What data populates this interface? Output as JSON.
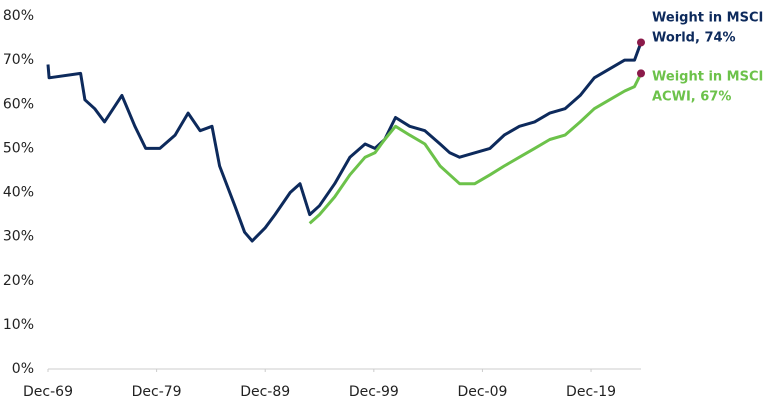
{
  "chart_data": {
    "type": "line",
    "x": [
      1969,
      1969.1,
      1972,
      1972.4,
      1973.3,
      1974.2,
      1975.8,
      1977,
      1978,
      1979.3,
      1980.7,
      1981.9,
      1983,
      1984.1,
      1984.8,
      1986.2,
      1987.1,
      1987.8,
      1989,
      1989.9,
      1991.3,
      1992.2,
      1993.1,
      1994,
      1995.4,
      1996.8,
      1998.2,
      1999.1,
      2000,
      2001,
      2002.3,
      2003.7,
      2005.1,
      2006,
      2006.9,
      2008.3,
      2009.7,
      2011,
      2012.4,
      2013.8,
      2015.2,
      2016.6,
      2018,
      2019.3,
      2020.7,
      2022.1,
      2023,
      2023.6
    ],
    "series": [
      {
        "label_lines": [
          "Weight in MSCI",
          "World, 74%"
        ],
        "color": "#0d2a5c",
        "values": [
          69,
          66,
          67,
          61,
          59,
          56,
          62,
          55,
          50,
          50,
          53,
          58,
          54,
          55,
          46,
          37,
          31,
          29,
          32,
          35,
          40,
          42,
          35,
          37,
          42,
          48,
          51,
          50,
          52,
          57,
          55,
          54,
          51,
          49,
          48,
          49,
          50,
          53,
          55,
          56,
          58,
          59,
          62,
          66,
          68,
          70,
          70,
          74
        ]
      },
      {
        "label_lines": [
          "Weight in MSCI",
          "ACWI, 67%"
        ],
        "color": "#6cc24a",
        "values": [
          null,
          null,
          null,
          null,
          null,
          null,
          null,
          null,
          null,
          null,
          null,
          null,
          null,
          null,
          null,
          null,
          null,
          null,
          null,
          null,
          null,
          null,
          33,
          35,
          39,
          44,
          48,
          49,
          52,
          55,
          53,
          51,
          46,
          44,
          42,
          42,
          44,
          46,
          48,
          50,
          52,
          53,
          56,
          59,
          61,
          63,
          64,
          67
        ]
      }
    ],
    "end_marker_color": "#8b1a4a",
    "xlim": [
      1969,
      2023.6
    ],
    "xticks": [
      {
        "value": 1969,
        "label": "Dec-69"
      },
      {
        "value": 1979,
        "label": "Dec-79"
      },
      {
        "value": 1989,
        "label": "Dec-89"
      },
      {
        "value": 1999,
        "label": "Dec-99"
      },
      {
        "value": 2009,
        "label": "Dec-09"
      },
      {
        "value": 2019,
        "label": "Dec-19"
      }
    ],
    "ylim": [
      0,
      80
    ],
    "yticks": [
      {
        "value": 0,
        "label": "0%"
      },
      {
        "value": 10,
        "label": "10%"
      },
      {
        "value": 20,
        "label": "20%"
      },
      {
        "value": 30,
        "label": "30%"
      },
      {
        "value": 40,
        "label": "40%"
      },
      {
        "value": 50,
        "label": "50%"
      },
      {
        "value": 60,
        "label": "60%"
      },
      {
        "value": 70,
        "label": "70%"
      },
      {
        "value": 80,
        "label": "80%"
      }
    ],
    "grid": false
  }
}
